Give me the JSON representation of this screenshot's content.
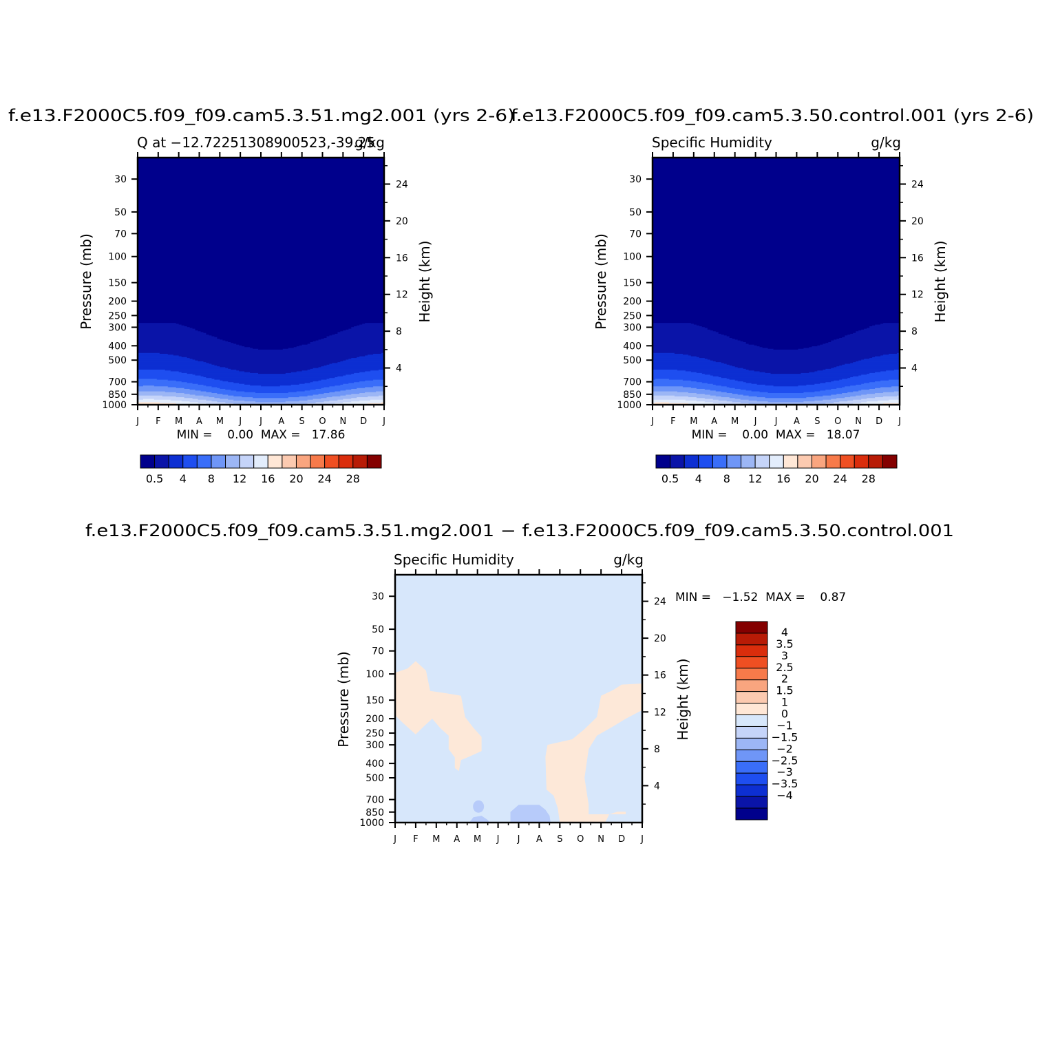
{
  "color_scales": {
    "abs": [
      "#00008c",
      "#0a14a8",
      "#0d2fd2",
      "#1e4ef0",
      "#3a6ef9",
      "#6f96f7",
      "#9cb6f5",
      "#c5d4f9",
      "#e3edfc",
      "#ffe7d6",
      "#fccab0",
      "#f9a57f",
      "#f77a4a",
      "#ef4f22",
      "#da2d0c",
      "#b81b06",
      "#840000"
    ],
    "diff": [
      "#00008c",
      "#0a14a8",
      "#0d2fd2",
      "#1e4ef0",
      "#3a6ef9",
      "#6f96f7",
      "#9cb6f5",
      "#c5d4f9",
      "#d7e7fb",
      "#ffe7d6",
      "#fccab0",
      "#f9a57f",
      "#f77a4a",
      "#ef4f22",
      "#da2d0c",
      "#b81b06",
      "#840000"
    ]
  },
  "months": [
    "J",
    "F",
    "M",
    "A",
    "M",
    "J",
    "J",
    "A",
    "S",
    "O",
    "N",
    "D",
    "J"
  ],
  "pressure_ticks": [
    "30",
    "50",
    "70",
    "100",
    "150",
    "200",
    "250",
    "300",
    "400",
    "500",
    "700",
    "850",
    "1000"
  ],
  "height_ticks": [
    "24",
    "20",
    "16",
    "12",
    "8",
    "4"
  ],
  "panels": [
    {
      "title": "f.e13.F2000C5.f09_f09.cam5.3.51.mg2.001 (yrs 2-6)",
      "left_label": "Q at −12.72251308900523,-39.25",
      "right_label": "g/kg",
      "y_left_label": "Pressure (mb)",
      "y_right_label": "Height (km)",
      "minmax": "MIN =    0.00  MAX =   17.86",
      "colorbar_labels": [
        "0.5",
        "4",
        "8",
        "12",
        "16",
        "20",
        "24",
        "28"
      ]
    },
    {
      "title": "f.e13.F2000C5.f09_f09.cam5.3.50.control.001 (yrs 2-6)",
      "left_label": "Specific Humidity",
      "right_label": "g/kg",
      "y_left_label": "Pressure (mb)",
      "y_right_label": "Height (km)",
      "minmax": "MIN =    0.00  MAX =   18.07",
      "colorbar_labels": [
        "0.5",
        "4",
        "8",
        "12",
        "16",
        "20",
        "24",
        "28"
      ]
    },
    {
      "title": "f.e13.F2000C5.f09_f09.cam5.3.51.mg2.001 − f.e13.F2000C5.f09_f09.cam5.3.50.control.001",
      "left_label": "Specific Humidity",
      "right_label": "g/kg",
      "y_left_label": "Pressure (mb)",
      "y_right_label": "Height (km)",
      "minmax": "MIN =   −1.52  MAX =    0.87",
      "colorbar_labels": [
        "4",
        "3.5",
        "3",
        "2.5",
        "2",
        "1.5",
        "1",
        "0",
        "−1",
        "−1.5",
        "−2",
        "−2.5",
        "−3",
        "−3.5",
        "−4"
      ]
    }
  ],
  "chart_data": [
    {
      "type": "heatmap",
      "title": "f.e13.F2000C5.f09_f09.cam5.3.51.mg2.001 (yrs 2-6)",
      "subtitle": "Q at −12.72251308900523,-39.25",
      "units": "g/kg",
      "xlabel": "",
      "ylabel": "Pressure (mb)",
      "ylabel_right": "Height (km)",
      "x_ticks": [
        "J",
        "F",
        "M",
        "A",
        "M",
        "J",
        "J",
        "A",
        "S",
        "O",
        "N",
        "D",
        "J"
      ],
      "y_ticks": [
        30,
        50,
        70,
        100,
        150,
        200,
        250,
        300,
        400,
        500,
        700,
        850,
        1000
      ],
      "y_scale": "log",
      "y_reversed": true,
      "min": 0.0,
      "max": 17.86,
      "contour_levels": [
        0.5,
        2,
        4,
        6,
        8,
        10,
        12,
        14,
        16,
        18,
        20,
        22,
        24,
        26,
        28
      ]
    },
    {
      "type": "heatmap",
      "title": "f.e13.F2000C5.f09_f09.cam5.3.50.control.001 (yrs 2-6)",
      "subtitle": "Specific Humidity",
      "units": "g/kg",
      "xlabel": "",
      "ylabel": "Pressure (mb)",
      "ylabel_right": "Height (km)",
      "x_ticks": [
        "J",
        "F",
        "M",
        "A",
        "M",
        "J",
        "J",
        "A",
        "S",
        "O",
        "N",
        "D",
        "J"
      ],
      "y_ticks": [
        30,
        50,
        70,
        100,
        150,
        200,
        250,
        300,
        400,
        500,
        700,
        850,
        1000
      ],
      "y_scale": "log",
      "y_reversed": true,
      "min": 0.0,
      "max": 18.07,
      "contour_levels": [
        0.5,
        2,
        4,
        6,
        8,
        10,
        12,
        14,
        16,
        18,
        20,
        22,
        24,
        26,
        28
      ]
    },
    {
      "type": "heatmap",
      "title": "f.e13.F2000C5.f09_f09.cam5.3.51.mg2.001 − f.e13.F2000C5.f09_f09.cam5.3.50.control.001",
      "subtitle": "Specific Humidity",
      "units": "g/kg",
      "xlabel": "",
      "ylabel": "Pressure (mb)",
      "ylabel_right": "Height (km)",
      "x_ticks": [
        "J",
        "F",
        "M",
        "A",
        "M",
        "J",
        "J",
        "A",
        "S",
        "O",
        "N",
        "D",
        "J"
      ],
      "y_ticks": [
        30,
        50,
        70,
        100,
        150,
        200,
        250,
        300,
        400,
        500,
        700,
        850,
        1000
      ],
      "y_scale": "log",
      "y_reversed": true,
      "min": -1.52,
      "max": 0.87,
      "contour_levels": [
        -4,
        -3.5,
        -3,
        -2.5,
        -2,
        -1.5,
        -1,
        0,
        1,
        1.5,
        2,
        2.5,
        3,
        3.5,
        4
      ]
    }
  ]
}
